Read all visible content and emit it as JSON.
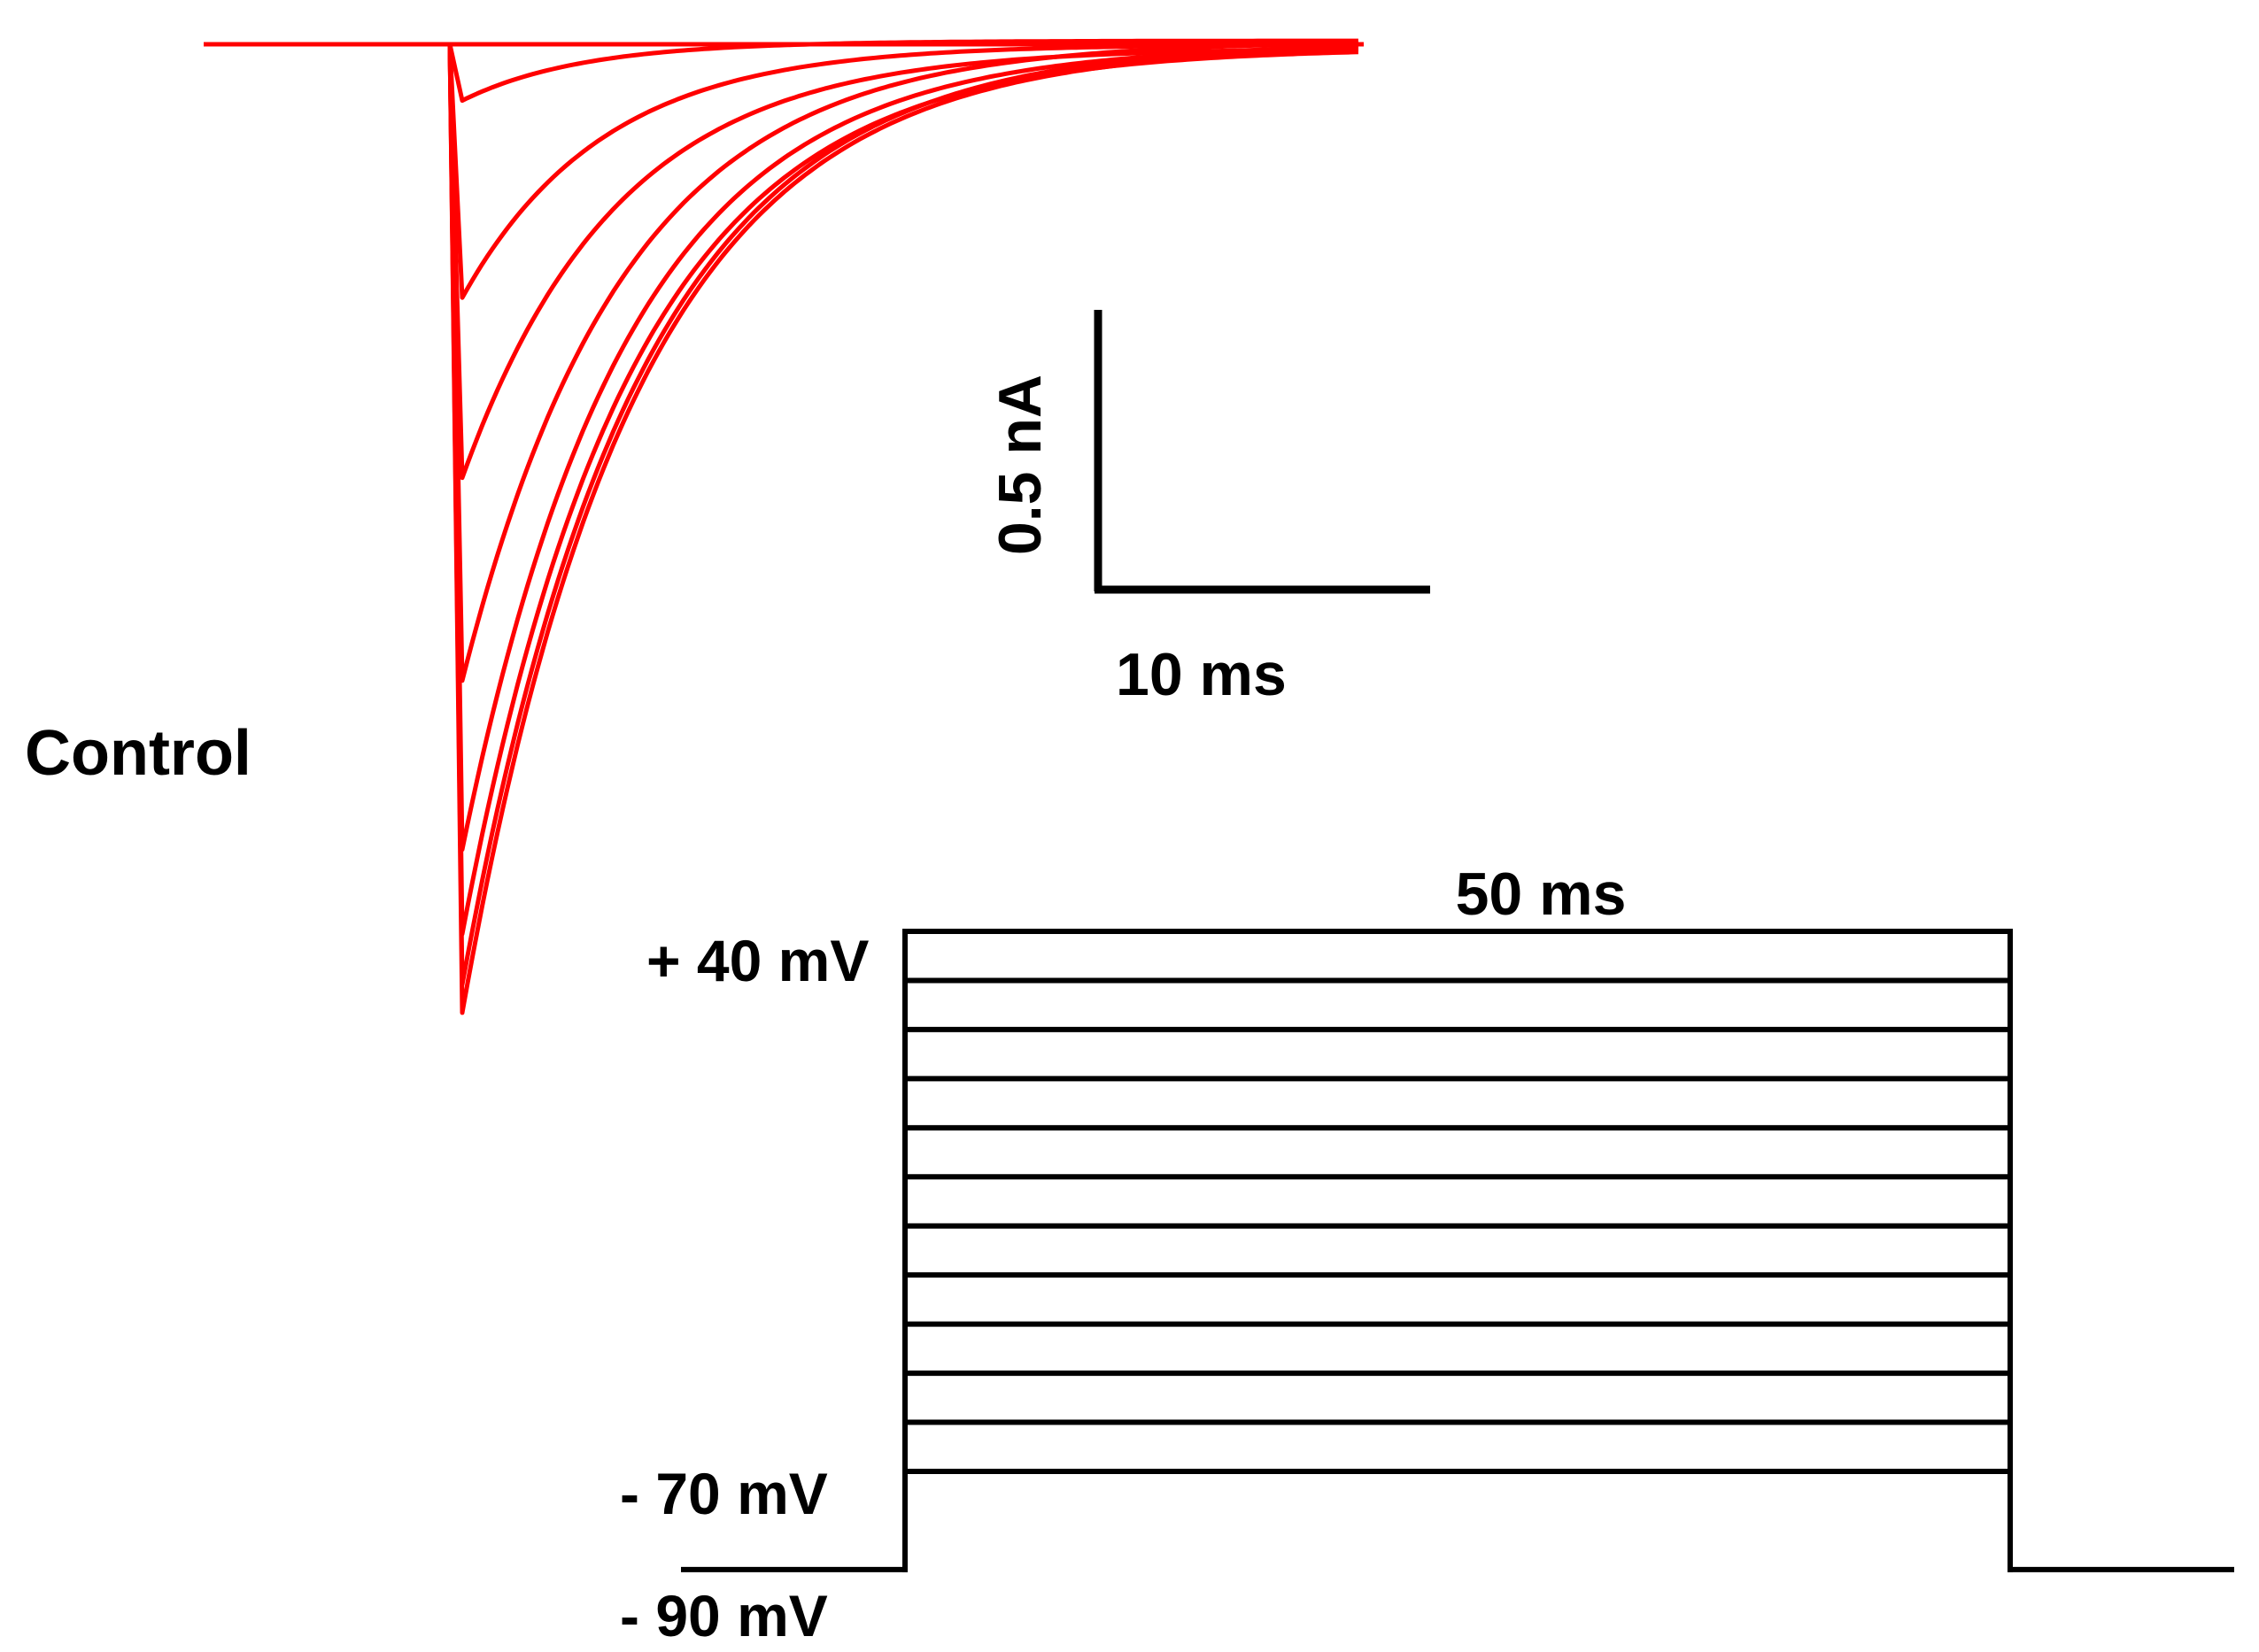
{
  "figure": {
    "condition_label": "Control",
    "scale_bar": {
      "current_label": "0.5 nA",
      "time_label": "10 ms"
    },
    "protocol": {
      "duration_label": "50 ms",
      "top_label": "+ 40 mV",
      "step_bottom_label": "- 70 mV",
      "holding_label": "- 90 mV"
    },
    "colors": {
      "trace": "#ff0000",
      "protocol": "#000000",
      "background": "#ffffff"
    }
  },
  "chart_data": [
    {
      "type": "line",
      "series_kind": "current traces",
      "units": {
        "x": "ms",
        "y": "nA"
      },
      "scale_bar": {
        "x": 10,
        "x_label": "10 ms",
        "y": 0.5,
        "y_label": "0.5 nA"
      },
      "baseline_nA": 0,
      "peaks": [
        {
          "peak_nA": 0.1,
          "tau_ms": 3.5
        },
        {
          "peak_nA": 0.45,
          "tau_ms": 4.2
        },
        {
          "peak_nA": 0.77,
          "tau_ms": 4.6
        },
        {
          "peak_nA": 1.13,
          "tau_ms": 4.8
        },
        {
          "peak_nA": 1.43,
          "tau_ms": 4.9
        },
        {
          "peak_nA": 1.58,
          "tau_ms": 5.0
        },
        {
          "peak_nA": 1.67,
          "tau_ms": 5.1
        },
        {
          "peak_nA": 1.72,
          "tau_ms": 5.1
        }
      ]
    },
    {
      "type": "line",
      "series_kind": "voltage step protocol",
      "units": {
        "x": "ms",
        "y": "mV"
      },
      "holding_mV": -90,
      "step_duration_ms": 50,
      "step_levels_mV": [
        -70,
        -60,
        -50,
        -40,
        -30,
        -20,
        -10,
        0,
        10,
        20,
        30,
        40
      ],
      "labels": {
        "top": "+ 40 mV",
        "bottom": "- 70 mV",
        "holding": "- 90 mV",
        "duration": "50 ms"
      }
    }
  ]
}
